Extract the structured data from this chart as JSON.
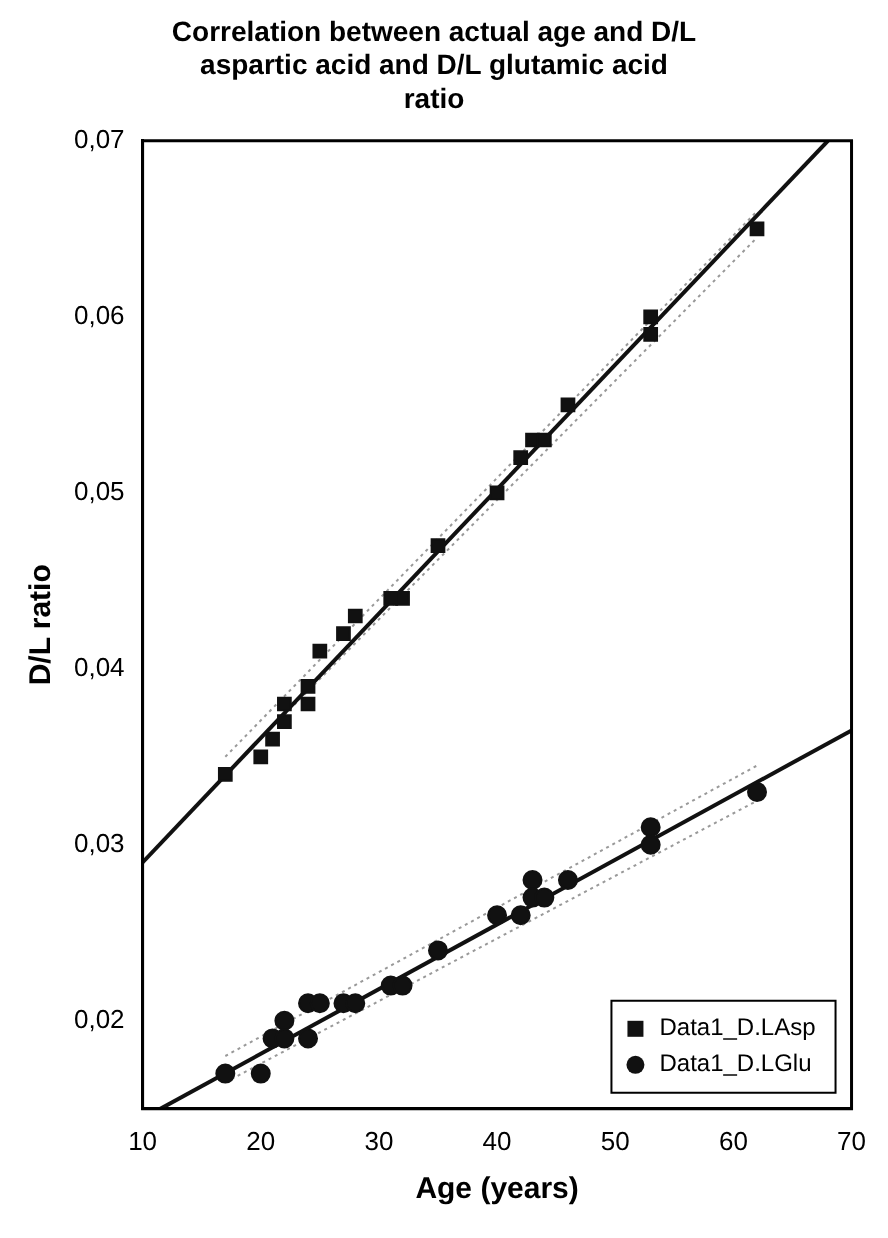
{
  "chart_data": {
    "type": "scatter",
    "title": "Correlation between actual age and D/L aspartic acid and D/L glutamic acid ratio",
    "xlabel": "Age (years)",
    "ylabel": "D/L ratio",
    "xlim": [
      10,
      70
    ],
    "xticks": [
      10,
      20,
      30,
      40,
      50,
      60,
      70
    ],
    "ylim": [
      0.015,
      0.07
    ],
    "yticks": [
      {
        "value": 0.02,
        "label": "0,02"
      },
      {
        "value": 0.03,
        "label": "0,03"
      },
      {
        "value": 0.04,
        "label": "0,04"
      },
      {
        "value": 0.05,
        "label": "0,05"
      },
      {
        "value": 0.06,
        "label": "0,06"
      },
      {
        "value": 0.07,
        "label": "0,07"
      }
    ],
    "grid": false,
    "legend": "bottom right",
    "series": [
      {
        "name": "Data1_D.LAsp",
        "marker": "square",
        "color": "#111111",
        "x": [
          17,
          20,
          21,
          22,
          22,
          24,
          24,
          25,
          27,
          28,
          31,
          32,
          35,
          40,
          42,
          43,
          44,
          46,
          53,
          53,
          62
        ],
        "values": [
          0.034,
          0.035,
          0.036,
          0.037,
          0.038,
          0.038,
          0.039,
          0.041,
          0.042,
          0.043,
          0.044,
          0.044,
          0.047,
          0.05,
          0.052,
          0.053,
          0.053,
          0.055,
          0.059,
          0.06,
          0.065
        ]
      },
      {
        "name": "Data1_D.LGlu",
        "marker": "circle",
        "color": "#111111",
        "x": [
          17,
          20,
          21,
          22,
          22,
          24,
          24,
          25,
          27,
          28,
          31,
          32,
          35,
          40,
          42,
          43,
          43,
          44,
          46,
          53,
          53,
          62
        ],
        "values": [
          0.017,
          0.017,
          0.019,
          0.019,
          0.02,
          0.019,
          0.021,
          0.021,
          0.021,
          0.021,
          0.022,
          0.022,
          0.024,
          0.026,
          0.026,
          0.027,
          0.028,
          0.027,
          0.028,
          0.03,
          0.031,
          0.033
        ]
      },
      {
        "type": "line",
        "marker": "none",
        "line_style": "solid",
        "color": "#111111",
        "x": [
          10,
          68
        ],
        "values": [
          0.029,
          0.07
        ]
      },
      {
        "type": "line",
        "marker": "none",
        "line_style": "solid",
        "color": "#111111",
        "x": [
          11.5,
          70
        ],
        "values": [
          0.015,
          0.0365
        ]
      },
      {
        "type": "line",
        "marker": "none",
        "line_style": "dotted",
        "color": "#999999",
        "x": [
          17,
          62
        ],
        "values": [
          0.035,
          0.066
        ]
      },
      {
        "type": "line",
        "marker": "none",
        "line_style": "dotted",
        "color": "#999999",
        "x": [
          17,
          62
        ],
        "values": [
          0.034,
          0.0645
        ]
      },
      {
        "type": "line",
        "marker": "none",
        "line_style": "dotted",
        "color": "#999999",
        "x": [
          17,
          62
        ],
        "values": [
          0.018,
          0.0345
        ]
      },
      {
        "type": "line",
        "marker": "none",
        "line_style": "dotted",
        "color": "#999999",
        "x": [
          17,
          62
        ],
        "values": [
          0.0165,
          0.0325
        ]
      }
    ]
  }
}
